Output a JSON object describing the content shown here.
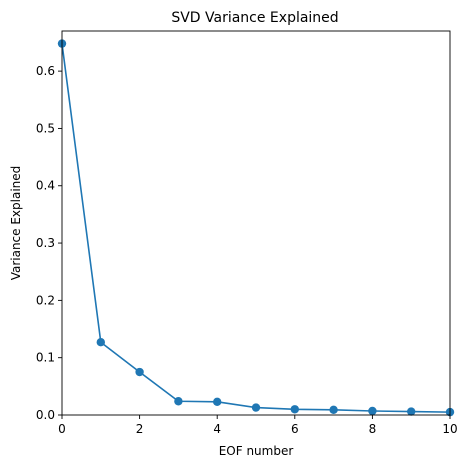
{
  "chart_data": {
    "type": "line",
    "title": "SVD Variance Explained",
    "xlabel": "EOF number",
    "ylabel": "Variance Explained",
    "xlim": [
      0,
      10
    ],
    "ylim": [
      0,
      0.67
    ],
    "xticks": [
      0,
      2,
      4,
      6,
      8,
      10
    ],
    "xtick_labels": [
      "0",
      "2",
      "4",
      "6",
      "8",
      "10"
    ],
    "yticks": [
      0.0,
      0.1,
      0.2,
      0.3,
      0.4,
      0.5,
      0.6
    ],
    "ytick_labels": [
      "0.0",
      "0.1",
      "0.2",
      "0.3",
      "0.4",
      "0.5",
      "0.6"
    ],
    "grid": false,
    "series": [
      {
        "color": "#1f77b4",
        "marker": "circle",
        "x": [
          0,
          1,
          2,
          3,
          4,
          5,
          6,
          7,
          8,
          9,
          10
        ],
        "y": [
          0.648,
          0.127,
          0.075,
          0.024,
          0.023,
          0.013,
          0.01,
          0.009,
          0.007,
          0.006,
          0.005
        ]
      }
    ]
  }
}
